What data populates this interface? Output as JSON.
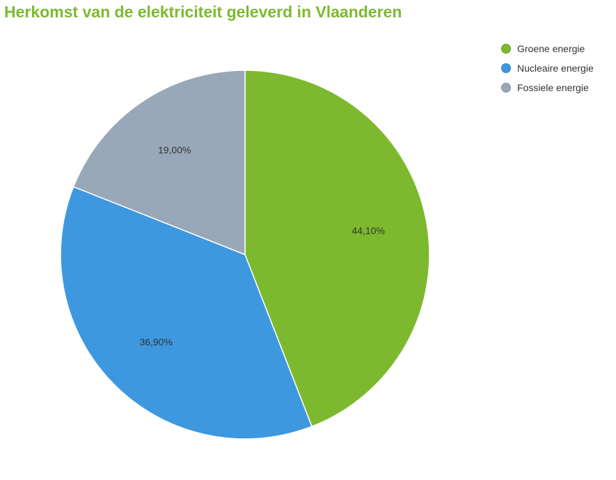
{
  "chart_data": {
    "type": "pie",
    "title": "Herkomst van de elektriciteit geleverd in Vlaanderen",
    "slices": [
      {
        "name": "Groene energie",
        "value": 44.1,
        "label": "44,10%",
        "color": "#7db92e"
      },
      {
        "name": "Nucleaire energie",
        "value": 36.9,
        "label": "36,90%",
        "color": "#3d98e0"
      },
      {
        "name": "Fossiele energie",
        "value": 19.0,
        "label": "19,00%",
        "color": "#98a8b8"
      }
    ],
    "start_angle_deg": 0,
    "direction": "clockwise",
    "legend_position": "top-right"
  }
}
